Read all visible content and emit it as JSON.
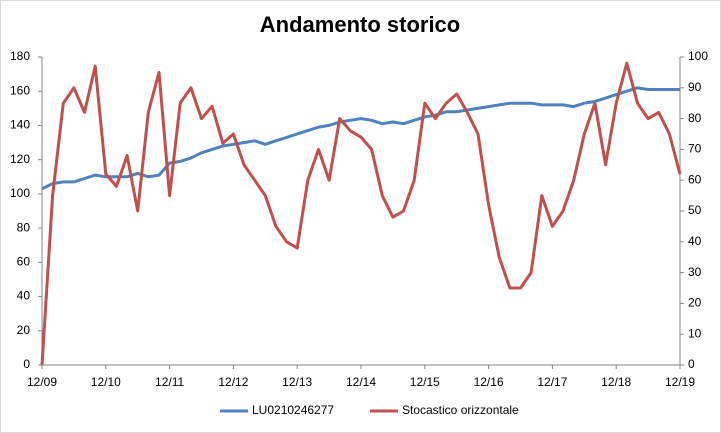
{
  "chart_data": {
    "type": "line",
    "title": "Andamento storico",
    "categories": [
      "12/09",
      null,
      null,
      null,
      null,
      null,
      "12/10",
      null,
      null,
      null,
      null,
      null,
      "12/11",
      null,
      null,
      null,
      null,
      null,
      "12/12",
      null,
      null,
      null,
      null,
      null,
      "12/13",
      null,
      null,
      null,
      null,
      null,
      "12/14",
      null,
      null,
      null,
      null,
      null,
      "12/15",
      null,
      null,
      null,
      null,
      null,
      "12/16",
      null,
      null,
      null,
      null,
      null,
      "12/17",
      null,
      null,
      null,
      null,
      null,
      "12/18",
      null,
      null,
      null,
      null,
      null,
      "12/19"
    ],
    "series": [
      {
        "name": "LU0210246277",
        "color": "#4f81bd",
        "values": [
          103,
          106,
          107,
          107,
          109,
          111,
          110,
          110,
          110,
          112,
          110,
          111,
          118,
          119,
          121,
          124,
          126,
          128,
          129,
          130,
          131,
          129,
          131,
          133,
          135,
          137,
          139,
          140,
          142,
          143,
          144,
          143,
          141,
          142,
          141,
          143,
          145,
          146,
          148,
          148,
          149,
          150,
          151,
          152,
          153,
          153,
          153,
          152,
          152,
          152,
          151,
          153,
          154,
          156,
          158,
          160,
          162,
          161,
          161,
          161,
          161
        ]
      },
      {
        "name": "Stocastico orizzontale",
        "color": "#c0504d",
        "axis": "y2",
        "values": [
          0,
          55,
          85,
          90,
          82,
          97,
          62,
          58,
          68,
          50,
          82,
          95,
          55,
          85,
          90,
          80,
          84,
          72,
          75,
          65,
          60,
          55,
          45,
          40,
          38,
          60,
          70,
          60,
          80,
          76,
          74,
          70,
          55,
          48,
          50,
          60,
          85,
          80,
          85,
          88,
          82,
          75,
          52,
          35,
          25,
          25,
          30,
          55,
          45,
          50,
          60,
          75,
          85,
          65,
          85,
          98,
          85,
          80,
          82,
          75,
          62
        ]
      }
    ],
    "ylim": [
      0,
      180
    ],
    "yticks": [
      0,
      20,
      40,
      60,
      80,
      100,
      120,
      140,
      160,
      180
    ],
    "y2lim": [
      0,
      100
    ],
    "y2ticks": [
      0,
      10,
      20,
      30,
      40,
      50,
      60,
      70,
      80,
      90,
      100
    ],
    "legend": "bottom"
  }
}
